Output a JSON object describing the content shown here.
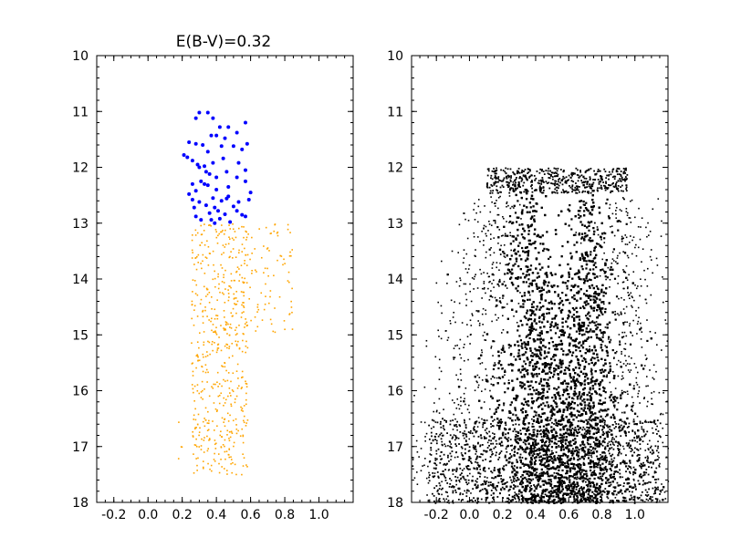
{
  "chart_data": [
    {
      "type": "scatter",
      "title": "E(B-V)=0.32",
      "xlabel": "",
      "ylabel": "",
      "xlim": [
        -0.3,
        1.2
      ],
      "ylim": [
        18,
        10
      ],
      "y_inverted": true,
      "grid": false,
      "xticks": [
        -0.2,
        0.0,
        0.2,
        0.4,
        0.6,
        0.8,
        1.0
      ],
      "xtick_labels": [
        "-0.2",
        "0.0",
        "0.2",
        "0.4",
        "0.6",
        "0.8",
        "1.0"
      ],
      "yticks": [
        10,
        11,
        12,
        13,
        14,
        15,
        16,
        17,
        18
      ],
      "ytick_labels": [
        "10",
        "11",
        "12",
        "13",
        "14",
        "15",
        "16",
        "17",
        "18"
      ],
      "series": [
        {
          "color": "#0000ff",
          "marker": "dot-large",
          "points": [
            [
              0.3,
              11.02
            ],
            [
              0.35,
              11.02
            ],
            [
              0.38,
              11.12
            ],
            [
              0.28,
              11.12
            ],
            [
              0.42,
              11.28
            ],
            [
              0.47,
              11.28
            ],
            [
              0.57,
              11.2
            ],
            [
              0.37,
              11.43
            ],
            [
              0.4,
              11.43
            ],
            [
              0.45,
              11.48
            ],
            [
              0.52,
              11.38
            ],
            [
              0.58,
              11.58
            ],
            [
              0.24,
              11.55
            ],
            [
              0.28,
              11.58
            ],
            [
              0.32,
              11.6
            ],
            [
              0.35,
              11.72
            ],
            [
              0.43,
              11.62
            ],
            [
              0.5,
              11.62
            ],
            [
              0.44,
              11.84
            ],
            [
              0.53,
              11.92
            ],
            [
              0.57,
              12.05
            ],
            [
              0.55,
              11.68
            ],
            [
              0.23,
              11.82
            ],
            [
              0.21,
              11.78
            ],
            [
              0.26,
              11.88
            ],
            [
              0.29,
              11.95
            ],
            [
              0.33,
              11.98
            ],
            [
              0.38,
              11.92
            ],
            [
              0.46,
              12.08
            ],
            [
              0.52,
              12.18
            ],
            [
              0.57,
              12.25
            ],
            [
              0.6,
              12.45
            ],
            [
              0.59,
              12.58
            ],
            [
              0.36,
              12.12
            ],
            [
              0.4,
              12.18
            ],
            [
              0.31,
              12.25
            ],
            [
              0.35,
              12.32
            ],
            [
              0.28,
              12.42
            ],
            [
              0.4,
              12.4
            ],
            [
              0.47,
              12.35
            ],
            [
              0.38,
              12.55
            ],
            [
              0.43,
              12.6
            ],
            [
              0.46,
              12.56
            ],
            [
              0.3,
              12.62
            ],
            [
              0.26,
              12.58
            ],
            [
              0.34,
              12.68
            ],
            [
              0.39,
              12.72
            ],
            [
              0.41,
              12.78
            ],
            [
              0.36,
              12.82
            ],
            [
              0.45,
              12.84
            ],
            [
              0.52,
              12.78
            ],
            [
              0.55,
              12.85
            ],
            [
              0.57,
              12.88
            ],
            [
              0.5,
              12.7
            ],
            [
              0.28,
              12.88
            ],
            [
              0.31,
              12.94
            ],
            [
              0.37,
              12.94
            ],
            [
              0.42,
              12.92
            ],
            [
              0.33,
              12.3
            ],
            [
              0.24,
              12.48
            ],
            [
              0.26,
              12.3
            ],
            [
              0.34,
              12.08
            ],
            [
              0.3,
              12.0
            ],
            [
              0.27,
              12.72
            ],
            [
              0.47,
              12.52
            ],
            [
              0.53,
              12.62
            ],
            [
              0.48,
              12.98
            ],
            [
              0.39,
              13.0
            ]
          ]
        },
        {
          "color": "#ffa500",
          "marker": "dot-small",
          "note_points": "generated",
          "clusters": [
            {
              "x0": 0.25,
              "x1": 0.58,
              "y0": 13.0,
              "y1": 17.5,
              "n": 520
            },
            {
              "x0": 0.55,
              "x1": 0.85,
              "y0": 13.0,
              "y1": 15.0,
              "n": 90
            },
            {
              "x0": 0.17,
              "x1": 0.3,
              "y0": 16.5,
              "y1": 17.4,
              "n": 10
            }
          ]
        }
      ]
    },
    {
      "type": "scatter",
      "title": "",
      "xlabel": "",
      "ylabel": "",
      "xlim": [
        -0.35,
        1.2
      ],
      "ylim": [
        18,
        10
      ],
      "y_inverted": true,
      "grid": false,
      "xticks": [
        -0.2,
        0.0,
        0.2,
        0.4,
        0.6,
        0.8,
        1.0
      ],
      "xtick_labels": [
        "-0.2",
        "0.0",
        "0.2",
        "0.4",
        "0.6",
        "0.8",
        "1.0"
      ],
      "yticks": [
        10,
        11,
        12,
        13,
        14,
        15,
        16,
        17,
        18
      ],
      "ytick_labels": [
        "10",
        "11",
        "12",
        "13",
        "14",
        "15",
        "16",
        "17",
        "18"
      ],
      "series": [
        {
          "color": "#000000",
          "marker": "dot-small",
          "description": "dense black scatter (synthetic density reproduction)",
          "bright_limit": 12.0,
          "faint_limit": 18.0
        }
      ]
    }
  ]
}
